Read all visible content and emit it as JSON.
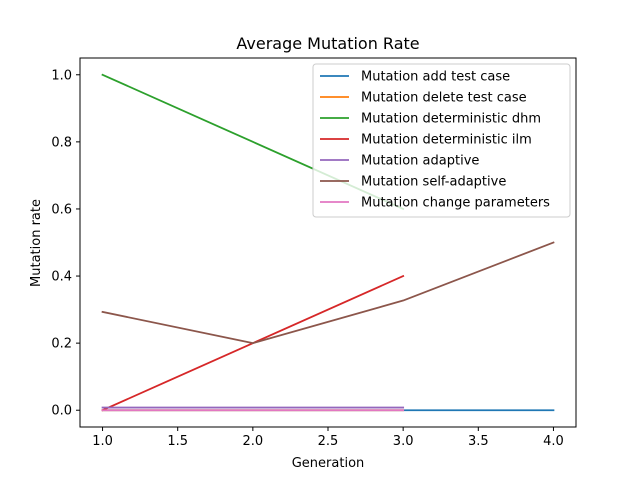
{
  "chart_data": {
    "type": "line",
    "title": "Average Mutation Rate",
    "xlabel": "Generation",
    "ylabel": "Mutation rate",
    "xlim": [
      0.85,
      4.15
    ],
    "ylim": [
      -0.05,
      1.05
    ],
    "xticks": [
      "1.0",
      "1.5",
      "2.0",
      "2.5",
      "3.0",
      "3.5",
      "4.0"
    ],
    "yticks": [
      "0.0",
      "0.2",
      "0.4",
      "0.6",
      "0.8",
      "1.0"
    ],
    "grid": false,
    "legend_position": "top-right",
    "series": [
      {
        "name": "Mutation add test case",
        "color": "#1f77b4",
        "x": [
          1,
          2,
          3,
          4
        ],
        "y": [
          0.0,
          0.0,
          0.0,
          0.0
        ]
      },
      {
        "name": "Mutation delete test case",
        "color": "#ff7f0e",
        "x": [
          1,
          2,
          3
        ],
        "y": [
          0.0,
          0.0,
          0.0
        ]
      },
      {
        "name": "Mutation deterministic dhm",
        "color": "#2ca02c",
        "x": [
          1,
          2,
          3
        ],
        "y": [
          1.0,
          0.8,
          0.6
        ]
      },
      {
        "name": "Mutation deterministic ilm",
        "color": "#d62728",
        "x": [
          1,
          2,
          3
        ],
        "y": [
          0.0,
          0.2,
          0.4
        ]
      },
      {
        "name": "Mutation adaptive",
        "color": "#9467bd",
        "x": [
          1,
          2,
          3
        ],
        "y": [
          0.008,
          0.008,
          0.008
        ]
      },
      {
        "name": "Mutation self-adaptive",
        "color": "#8c564b",
        "x": [
          1,
          2,
          3,
          4
        ],
        "y": [
          0.293,
          0.2,
          0.327,
          0.5
        ]
      },
      {
        "name": "Mutation change parameters",
        "color": "#e377c2",
        "x": [
          1,
          2,
          3
        ],
        "y": [
          0.0,
          0.0,
          0.0
        ]
      }
    ]
  }
}
